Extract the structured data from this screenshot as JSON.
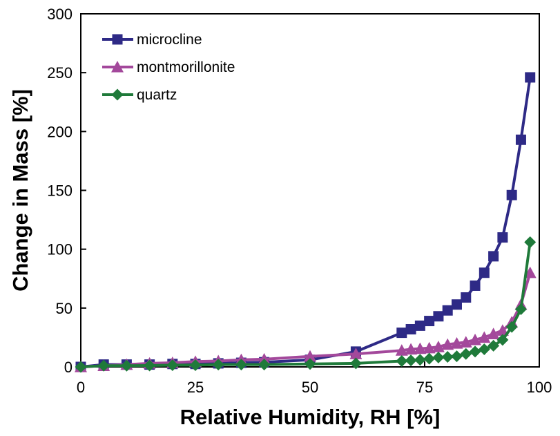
{
  "chart_data": {
    "type": "line",
    "title": "",
    "xlabel": "Relative Humidity, RH [%]",
    "ylabel": "Change in Mass [%]",
    "xlim": [
      0,
      100
    ],
    "ylim": [
      0,
      300
    ],
    "xticks": [
      0,
      25,
      50,
      75,
      100
    ],
    "yticks": [
      0,
      50,
      100,
      150,
      200,
      250,
      300
    ],
    "grid": false,
    "legend_position": "top-left",
    "series": [
      {
        "name": "microcline",
        "color": "#2e2a86",
        "marker": "square",
        "x": [
          0,
          5,
          10,
          15,
          20,
          25,
          30,
          35,
          40,
          50,
          60,
          70,
          72,
          74,
          76,
          78,
          80,
          82,
          84,
          86,
          88,
          90,
          92,
          94,
          96,
          98
        ],
        "y": [
          0,
          2,
          2,
          2,
          2.5,
          2.5,
          3,
          3.5,
          4,
          6,
          13,
          29,
          32,
          35,
          39,
          43,
          48,
          53,
          59,
          69,
          80,
          94,
          110,
          146,
          193,
          246
        ]
      },
      {
        "name": "montmorillonite",
        "color": "#a3489b",
        "marker": "triangle",
        "x": [
          0,
          5,
          10,
          15,
          20,
          25,
          30,
          35,
          40,
          50,
          60,
          70,
          72,
          74,
          76,
          78,
          80,
          82,
          84,
          86,
          88,
          90,
          92,
          94,
          96,
          98
        ],
        "y": [
          0,
          1,
          2,
          3,
          3.5,
          4.5,
          5,
          6,
          6.5,
          9,
          11,
          14,
          15,
          15.5,
          16,
          17,
          19,
          20,
          21,
          23,
          25,
          28,
          31,
          38,
          53,
          80
        ]
      },
      {
        "name": "quartz",
        "color": "#1f7a3a",
        "marker": "diamond",
        "x": [
          0,
          5,
          10,
          15,
          20,
          25,
          30,
          35,
          40,
          50,
          60,
          70,
          72,
          74,
          76,
          78,
          80,
          82,
          84,
          86,
          88,
          90,
          92,
          94,
          96,
          98
        ],
        "y": [
          0,
          1,
          1,
          1.2,
          1.5,
          1.5,
          2,
          2,
          2,
          2.5,
          3,
          5,
          5.5,
          6,
          7,
          8,
          8.5,
          9,
          11,
          13,
          15,
          18,
          23,
          34,
          49,
          106
        ]
      }
    ]
  }
}
